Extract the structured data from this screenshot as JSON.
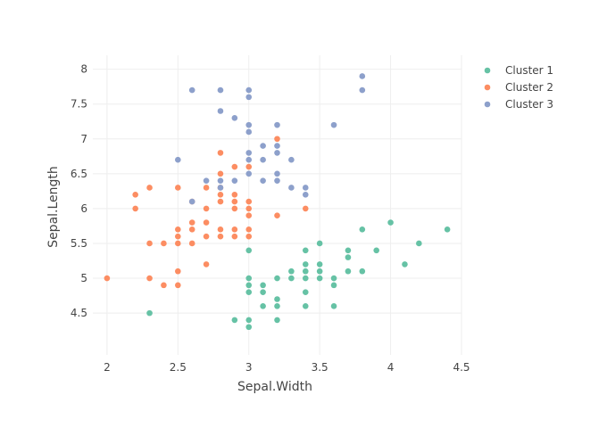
{
  "chart_data": {
    "type": "scatter",
    "xlabel": "Sepal.Width",
    "ylabel": "Sepal.Length",
    "xlim": [
      1.9,
      4.5
    ],
    "ylim": [
      3.9,
      8.2
    ],
    "xticks": [
      "2",
      "2.5",
      "3",
      "3.5",
      "4",
      "4.5"
    ],
    "yticks": [
      "4.5",
      "5",
      "5.5",
      "6",
      "6.5",
      "7",
      "7.5",
      "8"
    ],
    "grid": true,
    "legend_position": "top-right",
    "series": [
      {
        "name": "Cluster 1",
        "color": "#66c2a5",
        "points": [
          [
            2.3,
            4.5
          ],
          [
            2.9,
            4.4
          ],
          [
            3.0,
            4.4
          ],
          [
            3.2,
            4.4
          ],
          [
            3.0,
            4.3
          ],
          [
            3.0,
            4.8
          ],
          [
            3.0,
            4.9
          ],
          [
            3.0,
            5.0
          ],
          [
            3.1,
            4.6
          ],
          [
            3.1,
            4.8
          ],
          [
            3.1,
            4.9
          ],
          [
            3.2,
            4.6
          ],
          [
            3.2,
            4.7
          ],
          [
            3.2,
            5.0
          ],
          [
            3.3,
            5.0
          ],
          [
            3.3,
            5.1
          ],
          [
            3.4,
            4.6
          ],
          [
            3.4,
            4.8
          ],
          [
            3.4,
            5.0
          ],
          [
            3.4,
            5.1
          ],
          [
            3.4,
            5.2
          ],
          [
            3.4,
            5.4
          ],
          [
            3.5,
            5.0
          ],
          [
            3.5,
            5.1
          ],
          [
            3.5,
            5.2
          ],
          [
            3.5,
            5.5
          ],
          [
            3.6,
            4.6
          ],
          [
            3.6,
            4.9
          ],
          [
            3.6,
            5.0
          ],
          [
            3.7,
            5.1
          ],
          [
            3.7,
            5.3
          ],
          [
            3.7,
            5.4
          ],
          [
            3.8,
            5.1
          ],
          [
            3.8,
            5.7
          ],
          [
            3.9,
            5.4
          ],
          [
            4.0,
            5.8
          ],
          [
            4.1,
            5.2
          ],
          [
            4.2,
            5.5
          ],
          [
            4.4,
            5.7
          ],
          [
            3.0,
            5.4
          ]
        ]
      },
      {
        "name": "Cluster 2",
        "color": "#fc8d62",
        "points": [
          [
            2.0,
            5.0
          ],
          [
            2.2,
            6.0
          ],
          [
            2.2,
            6.2
          ],
          [
            2.3,
            5.0
          ],
          [
            2.3,
            5.5
          ],
          [
            2.3,
            6.3
          ],
          [
            2.4,
            4.9
          ],
          [
            2.4,
            5.5
          ],
          [
            2.5,
            4.9
          ],
          [
            2.5,
            5.1
          ],
          [
            2.5,
            5.5
          ],
          [
            2.5,
            5.6
          ],
          [
            2.5,
            5.7
          ],
          [
            2.5,
            6.3
          ],
          [
            2.6,
            5.5
          ],
          [
            2.6,
            5.7
          ],
          [
            2.6,
            5.8
          ],
          [
            2.6,
            6.1
          ],
          [
            2.7,
            5.2
          ],
          [
            2.7,
            5.6
          ],
          [
            2.7,
            5.8
          ],
          [
            2.7,
            6.0
          ],
          [
            2.7,
            6.3
          ],
          [
            2.8,
            5.6
          ],
          [
            2.8,
            5.7
          ],
          [
            2.8,
            6.1
          ],
          [
            2.8,
            6.2
          ],
          [
            2.8,
            6.3
          ],
          [
            2.8,
            6.5
          ],
          [
            2.8,
            6.8
          ],
          [
            2.9,
            5.6
          ],
          [
            2.9,
            5.7
          ],
          [
            2.9,
            6.0
          ],
          [
            2.9,
            6.1
          ],
          [
            2.9,
            6.2
          ],
          [
            2.9,
            6.6
          ],
          [
            3.0,
            5.6
          ],
          [
            3.0,
            5.7
          ],
          [
            3.0,
            5.9
          ],
          [
            3.0,
            6.0
          ],
          [
            3.0,
            6.1
          ],
          [
            3.0,
            6.6
          ],
          [
            3.2,
            5.9
          ],
          [
            3.2,
            7.0
          ],
          [
            3.4,
            6.0
          ]
        ]
      },
      {
        "name": "Cluster 3",
        "color": "#8da0cb",
        "points": [
          [
            2.5,
            6.7
          ],
          [
            2.6,
            6.1
          ],
          [
            2.6,
            7.7
          ],
          [
            2.7,
            6.4
          ],
          [
            2.8,
            6.3
          ],
          [
            2.8,
            6.4
          ],
          [
            2.8,
            7.4
          ],
          [
            2.8,
            7.7
          ],
          [
            2.9,
            6.4
          ],
          [
            2.9,
            7.3
          ],
          [
            3.0,
            6.5
          ],
          [
            3.0,
            6.7
          ],
          [
            3.0,
            6.8
          ],
          [
            3.0,
            7.1
          ],
          [
            3.0,
            7.2
          ],
          [
            3.0,
            7.6
          ],
          [
            3.0,
            7.7
          ],
          [
            3.1,
            6.4
          ],
          [
            3.1,
            6.7
          ],
          [
            3.1,
            6.9
          ],
          [
            3.2,
            6.4
          ],
          [
            3.2,
            6.5
          ],
          [
            3.2,
            6.8
          ],
          [
            3.2,
            6.9
          ],
          [
            3.2,
            7.2
          ],
          [
            3.3,
            6.3
          ],
          [
            3.3,
            6.7
          ],
          [
            3.4,
            6.2
          ],
          [
            3.4,
            6.3
          ],
          [
            3.6,
            7.2
          ],
          [
            3.8,
            7.7
          ],
          [
            3.8,
            7.9
          ]
        ]
      }
    ]
  }
}
